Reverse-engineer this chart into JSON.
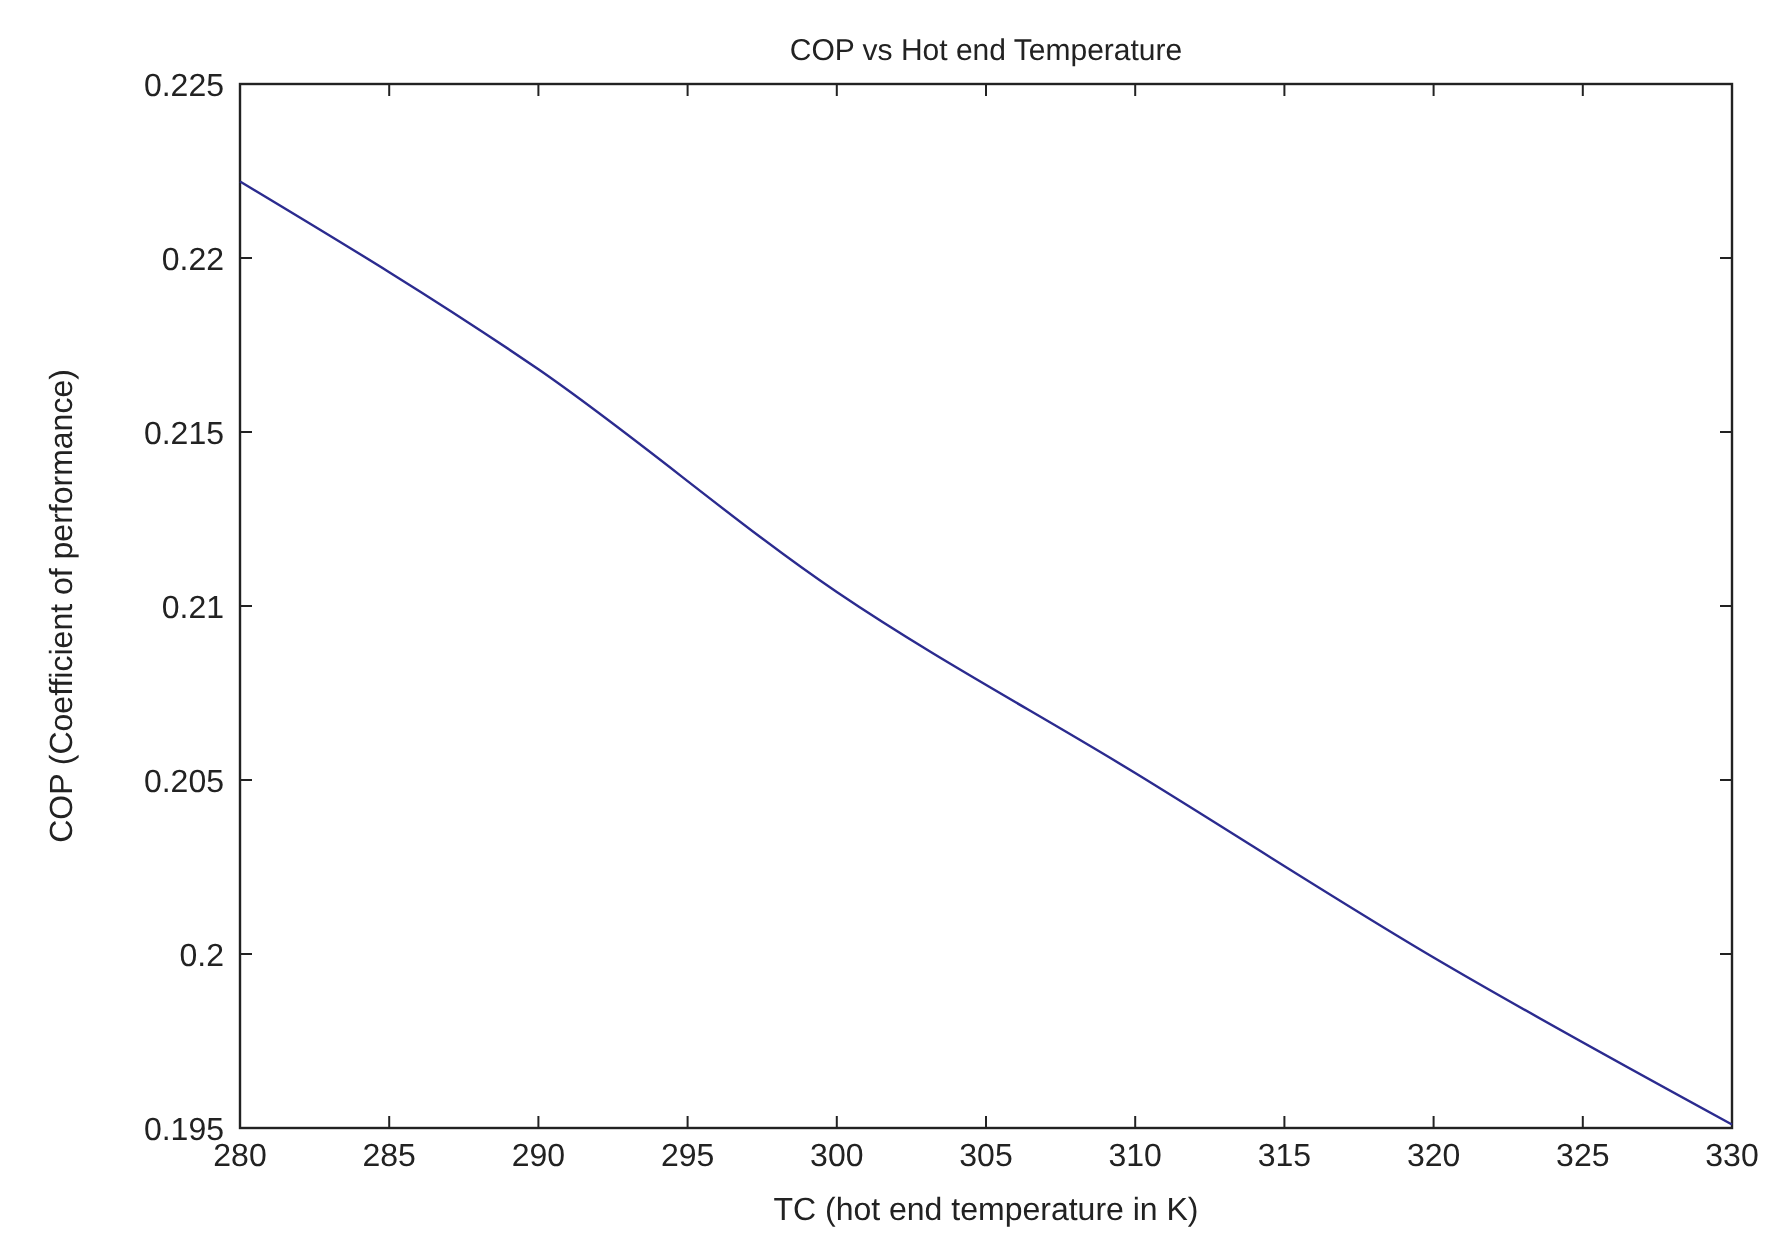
{
  "chart_data": {
    "type": "line",
    "title": "COP vs Hot end Temperature",
    "xlabel": "TC (hot end temperature in K)",
    "ylabel": "COP (Coefficient of performance)",
    "x": [
      280,
      290,
      300,
      310,
      320,
      330
    ],
    "series": [
      {
        "color": "#2b2b8f",
        "values": [
          0.2222,
          0.2168,
          0.2104,
          0.2052,
          0.1999,
          0.1951
        ]
      }
    ],
    "xlim": [
      280,
      330
    ],
    "xticks": [
      280,
      285,
      290,
      295,
      300,
      305,
      310,
      315,
      320,
      325,
      330
    ],
    "ylim": [
      0.195,
      0.225
    ],
    "yticks": [
      0.195,
      0.2,
      0.205,
      0.21,
      0.215,
      0.22,
      0.225
    ],
    "grid": false
  }
}
